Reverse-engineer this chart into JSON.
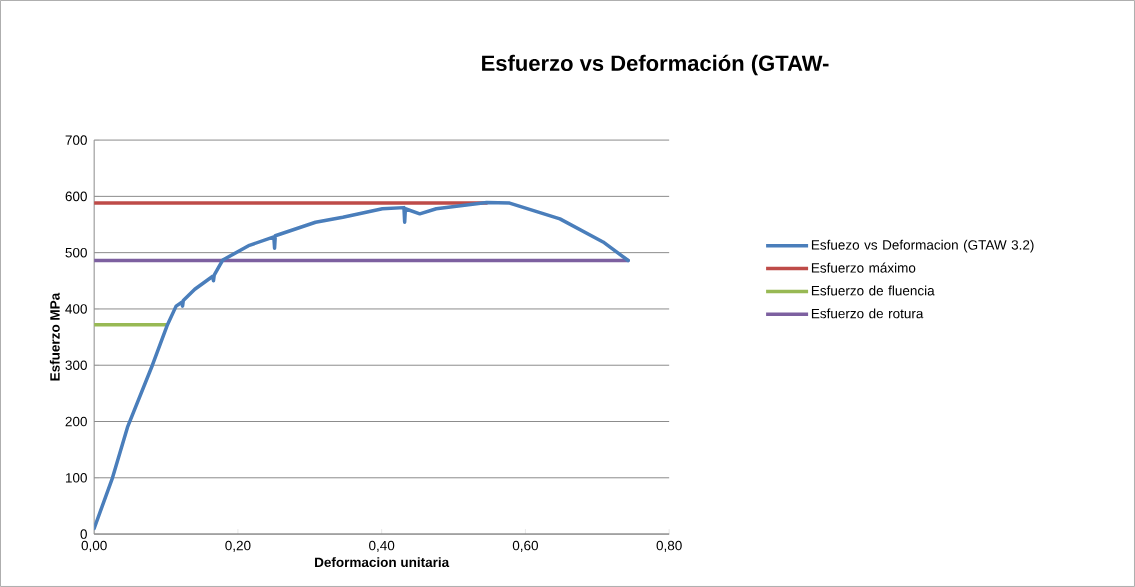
{
  "chart_data": {
    "type": "line",
    "title": "Esfuerzo vs Deformación (GTAW-",
    "xlabel": "Deformacion unitaria",
    "ylabel": "Esfuerzo MPa",
    "xlim": [
      0,
      0.8
    ],
    "ylim": [
      0,
      700
    ],
    "xticks": [
      {
        "value": 0,
        "label": "0,00"
      },
      {
        "value": 0.2,
        "label": "0,20"
      },
      {
        "value": 0.4,
        "label": "0,40"
      },
      {
        "value": 0.6,
        "label": "0,60"
      },
      {
        "value": 0.8,
        "label": "0,80"
      }
    ],
    "yticks": [
      0,
      100,
      200,
      300,
      400,
      500,
      600,
      700
    ],
    "grid": "y",
    "legend": "right",
    "marker": "none",
    "line_style": "solid",
    "series": [
      {
        "name": "Esfuezo vs Deformacion (GTAW 3.2)",
        "color": "#4a7ebb",
        "x": [
          0,
          0.0255,
          0.0464,
          0.081,
          0.102,
          0.114,
          0.122,
          0.123,
          0.124,
          0.14,
          0.165,
          0.166,
          0.167,
          0.179,
          0.216,
          0.25,
          0.251,
          0.252,
          0.308,
          0.346,
          0.401,
          0.431,
          0.432,
          0.433,
          0.453,
          0.476,
          0.546,
          0.578,
          0.648,
          0.708,
          0.743
        ],
        "values": [
          10,
          100,
          190,
          300,
          372,
          405,
          412,
          405,
          415,
          435,
          458,
          450,
          460,
          487,
          513,
          528,
          508,
          530,
          554,
          563,
          578,
          580,
          554,
          578,
          569,
          578,
          589,
          588,
          560,
          519,
          486
        ]
      },
      {
        "name": "Esfuerzo máximo",
        "color": "#be4b48",
        "x": [
          0,
          0.546
        ],
        "values": [
          588,
          588
        ]
      },
      {
        "name": "Esfuerzo de fluencia",
        "color": "#98b954",
        "x": [
          0,
          0.1
        ],
        "values": [
          372,
          372
        ]
      },
      {
        "name": "Esfuerzo de rotura",
        "color": "#7d60a0",
        "x": [
          0,
          0.743
        ],
        "values": [
          486,
          486
        ]
      }
    ]
  }
}
